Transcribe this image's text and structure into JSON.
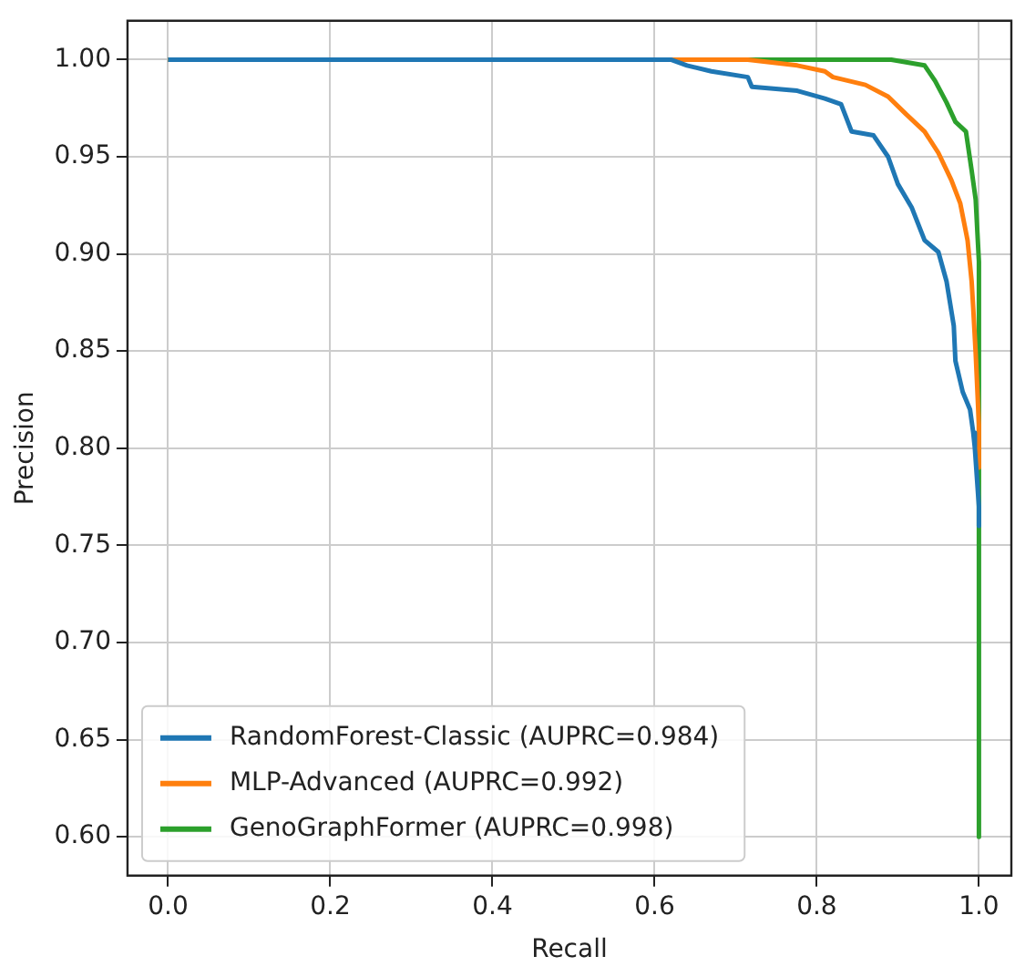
{
  "chart_data": {
    "type": "line",
    "xlabel": "Recall",
    "ylabel": "Precision",
    "xlim": [
      -0.05,
      1.04
    ],
    "ylim": [
      0.58,
      1.02
    ],
    "xticks": [
      {
        "value": 0,
        "label": "0.0"
      },
      0.2,
      0.4,
      0.6,
      0.8,
      {
        "value": 1,
        "label": "1.0"
      }
    ],
    "yticks": [
      {
        "value": 0.6,
        "label": "0.60"
      },
      0.65,
      {
        "value": 0.7,
        "label": "0.70"
      },
      0.75,
      {
        "value": 0.8,
        "label": "0.80"
      },
      0.85,
      {
        "value": 0.9,
        "label": "0.90"
      },
      0.95,
      {
        "value": 1,
        "label": "1.00"
      }
    ],
    "grid": true,
    "legend": "bottom left",
    "marker": "none",
    "line_style": "solid",
    "series": [
      {
        "name": "RandomForest-Classic (AUPRC=0.984)",
        "color": "#1f77b4",
        "x": [
          0,
          0.62,
          0.64,
          0.67,
          0.715,
          0.72,
          0.776,
          0.81,
          0.83,
          0.843,
          0.87,
          0.888,
          0.9,
          0.917,
          0.933,
          0.95,
          0.96,
          0.969,
          0.971,
          0.98,
          0.989,
          0.993,
          0.995,
          1,
          1
        ],
        "values": [
          1,
          1,
          0.997,
          0.994,
          0.991,
          0.986,
          0.984,
          0.98,
          0.977,
          0.963,
          0.961,
          0.95,
          0.936,
          0.924,
          0.907,
          0.901,
          0.886,
          0.863,
          0.845,
          0.829,
          0.82,
          0.808,
          0.8,
          0.77,
          0.76
        ]
      },
      {
        "name": "MLP-Advanced (AUPRC=0.992)",
        "color": "#ff7f0e",
        "x": [
          0,
          0.715,
          0.776,
          0.81,
          0.82,
          0.86,
          0.888,
          0.91,
          0.933,
          0.95,
          0.966,
          0.977,
          0.986,
          0.991,
          0.993,
          0.996,
          1,
          1
        ],
        "values": [
          1,
          1,
          0.997,
          0.994,
          0.991,
          0.987,
          0.981,
          0.972,
          0.963,
          0.952,
          0.938,
          0.926,
          0.907,
          0.886,
          0.872,
          0.849,
          0.812,
          0.79
        ]
      },
      {
        "name": "GenoGraphFormer (AUPRC=0.998)",
        "color": "#2ca02c",
        "x": [
          0,
          0.892,
          0.933,
          0.946,
          0.96,
          0.971,
          0.984,
          0.991,
          0.996,
          1,
          1
        ],
        "values": [
          1,
          1,
          0.997,
          0.989,
          0.978,
          0.968,
          0.963,
          0.943,
          0.928,
          0.896,
          0.6
        ]
      }
    ]
  }
}
